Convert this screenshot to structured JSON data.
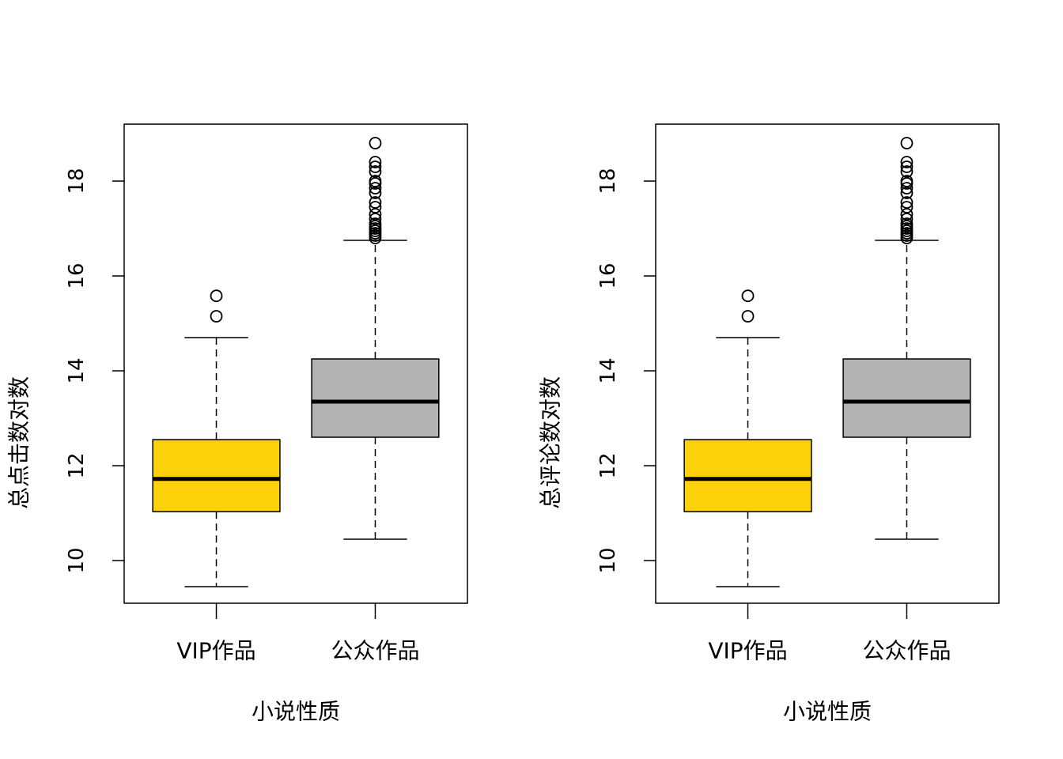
{
  "chart_data": [
    {
      "type": "box",
      "title": "",
      "xlabel": "小说性质",
      "ylabel": "总点击数对数",
      "ylim": [
        9.1,
        19.2
      ],
      "yticks": [
        10,
        12,
        14,
        16,
        18
      ],
      "grid": false,
      "categories": [
        "VIP作品",
        "公众作品"
      ],
      "colors": [
        "#FFD10A",
        "#B3B3B3"
      ],
      "boxes": [
        {
          "whisker_low": 9.45,
          "q1": 11.03,
          "median": 11.72,
          "q3": 12.55,
          "whisker_high": 14.7,
          "outliers": [
            15.15,
            15.58
          ]
        },
        {
          "whisker_low": 10.45,
          "q1": 12.6,
          "median": 13.35,
          "q3": 14.25,
          "whisker_high": 16.75,
          "outliers": [
            16.8,
            16.85,
            16.9,
            16.95,
            17.0,
            17.05,
            17.1,
            17.2,
            17.3,
            17.45,
            17.55,
            17.75,
            17.85,
            17.95,
            18.0,
            18.2,
            18.3,
            18.4,
            18.8
          ]
        }
      ]
    },
    {
      "type": "box",
      "title": "",
      "xlabel": "小说性质",
      "ylabel": "总评论数对数",
      "ylim": [
        9.1,
        19.2
      ],
      "yticks": [
        10,
        12,
        14,
        16,
        18
      ],
      "grid": false,
      "categories": [
        "VIP作品",
        "公众作品"
      ],
      "colors": [
        "#FFD10A",
        "#B3B3B3"
      ],
      "boxes": [
        {
          "whisker_low": 9.45,
          "q1": 11.03,
          "median": 11.72,
          "q3": 12.55,
          "whisker_high": 14.7,
          "outliers": [
            15.15,
            15.58
          ]
        },
        {
          "whisker_low": 10.45,
          "q1": 12.6,
          "median": 13.35,
          "q3": 14.25,
          "whisker_high": 16.75,
          "outliers": [
            16.8,
            16.85,
            16.9,
            16.95,
            17.0,
            17.05,
            17.1,
            17.2,
            17.3,
            17.45,
            17.55,
            17.75,
            17.85,
            17.95,
            18.0,
            18.2,
            18.3,
            18.4,
            18.8
          ]
        }
      ]
    }
  ]
}
